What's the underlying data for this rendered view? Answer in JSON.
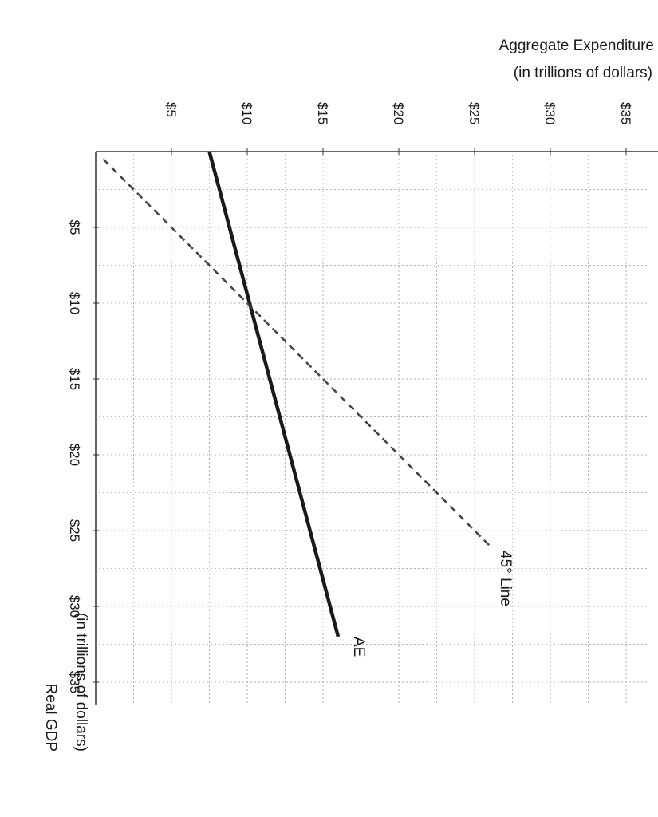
{
  "chart_data": {
    "type": "line",
    "rotation": "90deg-clockwise",
    "x": {
      "label_line1": "Real GDP",
      "label_line2": "(in trillions of dollars)",
      "range": [
        0,
        37.5
      ],
      "ticks": [
        5,
        10,
        15,
        20,
        25,
        30,
        35
      ],
      "tick_labels": [
        "$5",
        "$10",
        "$15",
        "$20",
        "$25",
        "$30",
        "$35"
      ],
      "minor_step": 2.5
    },
    "y": {
      "label_line1": "Aggregate Expenditure",
      "label_line2": "(in trillions of dollars)",
      "range": [
        0,
        37.5
      ],
      "ticks": [
        5,
        10,
        15,
        20,
        25,
        30,
        35
      ],
      "tick_labels": [
        "$5",
        "$10",
        "$15",
        "$20",
        "$25",
        "$30",
        "$35"
      ],
      "minor_step": 2.5
    },
    "grid": true,
    "series": [
      {
        "name": "AE",
        "style": "solid",
        "color": "#1a1a1a",
        "points": [
          [
            0,
            7.5
          ],
          [
            32,
            16
          ]
        ]
      },
      {
        "name": "45° Line",
        "style": "dashed",
        "color": "#444444",
        "points": [
          [
            0.5,
            0.5
          ],
          [
            26,
            26
          ]
        ]
      }
    ]
  }
}
